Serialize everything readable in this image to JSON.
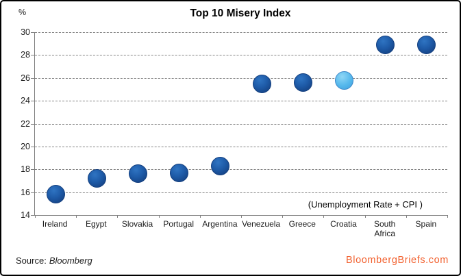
{
  "chart_data": {
    "type": "scatter",
    "title": "Top 10 Misery Index",
    "y_unit": "%",
    "annotation": "(Unemployment Rate + CPI )",
    "categories": [
      "Ireland",
      "Egypt",
      "Slovakia",
      "Portugal",
      "Argentina",
      "Venezuela",
      "Greece",
      "Croatia",
      "South Africa",
      "Spain"
    ],
    "values": [
      15.8,
      17.2,
      17.6,
      17.7,
      18.3,
      25.5,
      25.6,
      25.8,
      28.9,
      28.9
    ],
    "ylim": [
      14,
      30
    ],
    "ytick_step": 2,
    "grid": true,
    "legend": "none",
    "highlight_category": "Croatia",
    "point_color": "#1E5BA8",
    "highlight_color": "#55B8EC",
    "gridline_color": "#828282"
  },
  "footer": {
    "source_prefix": "Source:",
    "source_name": "Bloomberg",
    "brand": "BloombergBriefs.com",
    "brand_color": "#F2612F"
  }
}
